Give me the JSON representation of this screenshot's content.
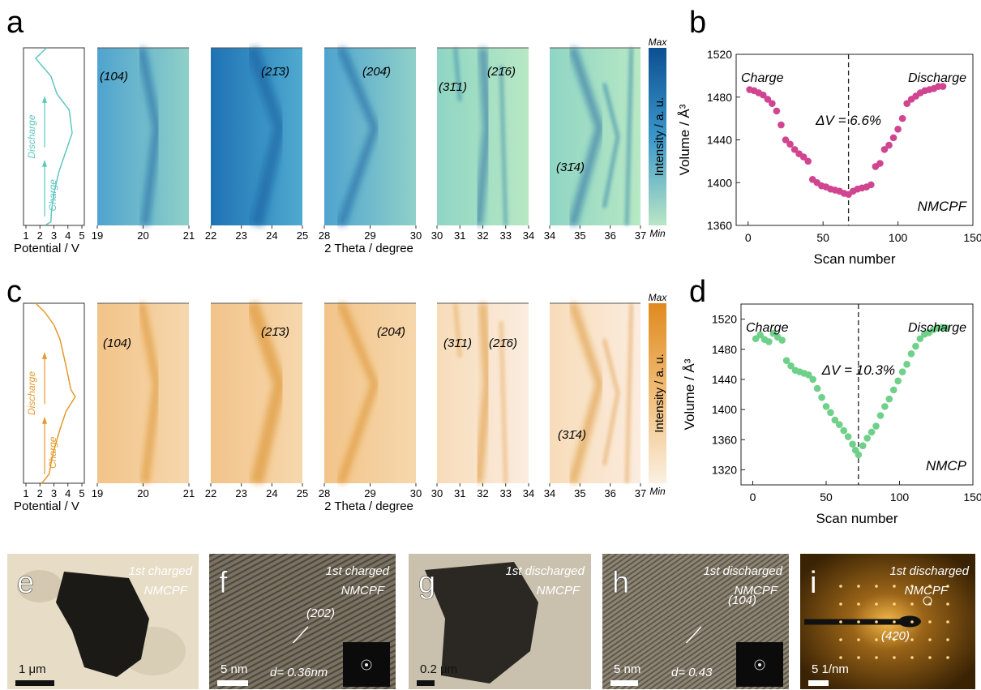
{
  "figure": {
    "panel_letters": [
      "a",
      "b",
      "c",
      "d",
      "e",
      "f",
      "g",
      "h",
      "i"
    ],
    "xrd_axis_title": "2 Theta / degree",
    "potential_axis_title": "Potential / V",
    "potential_ticks": [
      "1",
      "2",
      "3",
      "4",
      "5"
    ],
    "xrd_windows": [
      {
        "ticks": [
          "19",
          "20",
          "21"
        ]
      },
      {
        "ticks": [
          "22",
          "23",
          "24",
          "25"
        ]
      },
      {
        "ticks": [
          "28",
          "29",
          "30"
        ]
      },
      {
        "ticks": [
          "30",
          "31",
          "32",
          "33",
          "34"
        ]
      },
      {
        "ticks": [
          "34",
          "35",
          "36",
          "37"
        ]
      }
    ],
    "colorbar": {
      "max": "Max",
      "min": "Min",
      "label": "Intensity / a. u."
    },
    "curve_labels": {
      "discharge": "Discharge",
      "charge": "Charge"
    },
    "peak_labels": [
      "(104)",
      "(21̄3)",
      "(204̄)",
      "(31̄1)",
      "(21̄6)",
      "(31̄4)"
    ],
    "colors": {
      "blue_map": "#1a6fb0",
      "orange_map": "#e39a2c",
      "blue_curve": "#5ec7c0",
      "orange_curve": "#e39a2c",
      "magenta": "#d04490",
      "green": "#6fd08a"
    }
  },
  "chart_data": [
    {
      "type": "scatter",
      "panel": "b",
      "xlabel": "Scan number",
      "ylabel": "Volume / Å³",
      "xlim": [
        -8,
        150
      ],
      "ylim": [
        1360,
        1520
      ],
      "xticks": [
        "0",
        "50",
        "100",
        "150"
      ],
      "yticks": [
        "1360",
        "1400",
        "1440",
        "1480",
        "1520"
      ],
      "annotations": {
        "left": "Charge",
        "right": "Discharge",
        "delta": "ΔV = 6.6%",
        "sample": "NMCPF"
      },
      "divider_x": 67,
      "points": [
        [
          1,
          1487
        ],
        [
          4,
          1486
        ],
        [
          7,
          1484
        ],
        [
          10,
          1482
        ],
        [
          13,
          1478
        ],
        [
          16,
          1474
        ],
        [
          19,
          1467
        ],
        [
          22,
          1454
        ],
        [
          25,
          1440
        ],
        [
          28,
          1436
        ],
        [
          31,
          1431
        ],
        [
          34,
          1427
        ],
        [
          37,
          1424
        ],
        [
          40,
          1420
        ],
        [
          43,
          1403
        ],
        [
          46,
          1400
        ],
        [
          49,
          1397
        ],
        [
          52,
          1396
        ],
        [
          55,
          1394
        ],
        [
          58,
          1393
        ],
        [
          61,
          1392
        ],
        [
          64,
          1390
        ],
        [
          67,
          1389
        ],
        [
          70,
          1392
        ],
        [
          73,
          1394
        ],
        [
          76,
          1395
        ],
        [
          79,
          1396
        ],
        [
          82,
          1398
        ],
        [
          85,
          1415
        ],
        [
          88,
          1418
        ],
        [
          91,
          1431
        ],
        [
          94,
          1435
        ],
        [
          97,
          1442
        ],
        [
          100,
          1450
        ],
        [
          103,
          1460
        ],
        [
          106,
          1474
        ],
        [
          109,
          1478
        ],
        [
          112,
          1481
        ],
        [
          115,
          1484
        ],
        [
          118,
          1486
        ],
        [
          121,
          1487
        ],
        [
          124,
          1488
        ],
        [
          127,
          1490
        ],
        [
          130,
          1490
        ]
      ]
    },
    {
      "type": "scatter",
      "panel": "d",
      "xlabel": "Scan number",
      "ylabel": "Volume / Å³",
      "xlim": [
        -8,
        150
      ],
      "ylim": [
        1300,
        1540
      ],
      "xticks": [
        "0",
        "50",
        "100",
        "150"
      ],
      "yticks": [
        "1320",
        "1360",
        "1400",
        "1440",
        "1480",
        "1520"
      ],
      "annotations": {
        "left": "Charge",
        "right": "Discharge",
        "delta": "ΔV = 10.3%",
        "sample": "NMCP"
      },
      "divider_x": 72,
      "points": [
        [
          2,
          1494
        ],
        [
          5,
          1499
        ],
        [
          8,
          1493
        ],
        [
          11,
          1490
        ],
        [
          14,
          1501
        ],
        [
          17,
          1496
        ],
        [
          20,
          1492
        ],
        [
          23,
          1465
        ],
        [
          26,
          1458
        ],
        [
          29,
          1452
        ],
        [
          32,
          1450
        ],
        [
          35,
          1448
        ],
        [
          38,
          1446
        ],
        [
          41,
          1440
        ],
        [
          44,
          1428
        ],
        [
          47,
          1416
        ],
        [
          50,
          1404
        ],
        [
          53,
          1396
        ],
        [
          56,
          1386
        ],
        [
          59,
          1380
        ],
        [
          62,
          1372
        ],
        [
          65,
          1364
        ],
        [
          68,
          1354
        ],
        [
          70,
          1346
        ],
        [
          72,
          1340
        ],
        [
          75,
          1352
        ],
        [
          78,
          1362
        ],
        [
          81,
          1370
        ],
        [
          84,
          1378
        ],
        [
          87,
          1392
        ],
        [
          90,
          1404
        ],
        [
          93,
          1414
        ],
        [
          96,
          1426
        ],
        [
          99,
          1438
        ],
        [
          102,
          1450
        ],
        [
          105,
          1460
        ],
        [
          108,
          1474
        ],
        [
          111,
          1484
        ],
        [
          114,
          1494
        ],
        [
          117,
          1500
        ],
        [
          120,
          1502
        ],
        [
          123,
          1506
        ],
        [
          126,
          1508
        ],
        [
          129,
          1509
        ],
        [
          132,
          1508
        ]
      ]
    }
  ],
  "tem_panels": [
    {
      "letter": "e",
      "title": "1st charged",
      "sample": "NMCPF",
      "scale": "1 μm"
    },
    {
      "letter": "f",
      "title": "1st charged",
      "sample": "NMCPF",
      "plane": "(202)",
      "dspacing": "d= 0.36nm",
      "scale": "5 nm"
    },
    {
      "letter": "g",
      "title": "1st discharged",
      "sample": "NMCPF",
      "scale": "0.2 μm"
    },
    {
      "letter": "h",
      "title": "1st discharged",
      "sample": "NMCPF",
      "plane": "(104)",
      "dspacing": "d= 0.43",
      "scale": "5 nm"
    },
    {
      "letter": "i",
      "title": "1st discharged",
      "sample": "NMCPF",
      "plane": "(420)",
      "scale": "5 1/nm"
    }
  ]
}
